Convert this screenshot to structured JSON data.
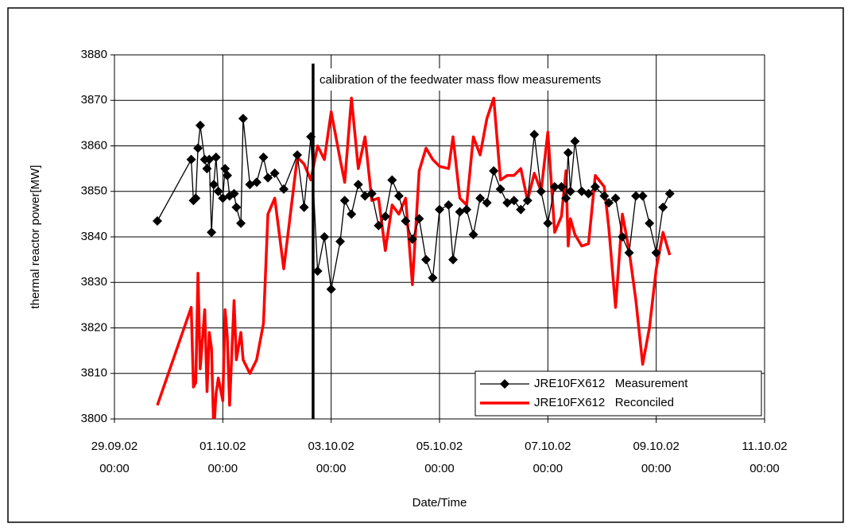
{
  "chart_data": {
    "type": "line",
    "y_label": "thermal reactor power[MW]",
    "x_label": "Date/Time",
    "annotation": "calibration of the feedwater mass flow measurements",
    "annotation_x": "02.10.02 16:00",
    "legend": "bottom-right",
    "grid": true,
    "ylim": [
      3800,
      3880
    ],
    "yticks": [
      3800,
      3810,
      3820,
      3830,
      3840,
      3850,
      3860,
      3870,
      3880
    ],
    "xlim": [
      "29.09.02 00:00",
      "11.10.02 00:00"
    ],
    "xticks": [
      {
        "value": "29.09.02 00:00",
        "label": "29.09.02\n00:00"
      },
      {
        "value": "01.10.02 00:00",
        "label": "01.10.02\n00:00"
      },
      {
        "value": "03.10.02 00:00",
        "label": "03.10.02\n00:00"
      },
      {
        "value": "05.10.02 00:00",
        "label": "05.10.02\n00:00"
      },
      {
        "value": "07.10.02 00:00",
        "label": "07.10.02\n00:00"
      },
      {
        "value": "09.10.02 00:00",
        "label": "09.10.02\n00:00"
      },
      {
        "value": "11.10.02 00:00",
        "label": "11.10.02\n00:00"
      }
    ],
    "x": [
      "29.09.02 19:00",
      "30.09.02 10:00",
      "30.09.02 11:00",
      "30.09.02 12:00",
      "30.09.02 13:00",
      "30.09.02 14:00",
      "30.09.02 16:00",
      "30.09.02 17:00",
      "30.09.02 18:00",
      "30.09.02 19:00",
      "30.09.02 20:00",
      "30.09.02 21:00",
      "30.09.02 22:00",
      "01.10.02 00:00",
      "01.10.02 01:00",
      "01.10.02 02:00",
      "01.10.02 03:00",
      "01.10.02 05:00",
      "01.10.02 06:00",
      "01.10.02 08:00",
      "01.10.02 09:00",
      "01.10.02 12:00",
      "01.10.02 15:00",
      "01.10.02 18:00",
      "01.10.02 20:00",
      "01.10.02 23:00",
      "02.10.02 03:00",
      "02.10.02 09:00",
      "02.10.02 12:00",
      "02.10.02 15:00",
      "02.10.02 18:00",
      "02.10.02 21:00",
      "03.10.02 00:00",
      "03.10.02 04:00",
      "03.10.02 06:00",
      "03.10.02 09:00",
      "03.10.02 12:00",
      "03.10.02 15:00",
      "03.10.02 18:00",
      "03.10.02 21:00",
      "04.10.02 00:00",
      "04.10.02 03:00",
      "04.10.02 06:00",
      "04.10.02 09:00",
      "04.10.02 12:00",
      "04.10.02 15:00",
      "04.10.02 18:00",
      "04.10.02 21:00",
      "05.10.02 00:00",
      "05.10.02 04:00",
      "05.10.02 06:00",
      "05.10.02 09:00",
      "05.10.02 12:00",
      "05.10.02 15:00",
      "05.10.02 18:00",
      "05.10.02 21:00",
      "06.10.02 00:00",
      "06.10.02 03:00",
      "06.10.02 06:00",
      "06.10.02 09:00",
      "06.10.02 12:00",
      "06.10.02 15:00",
      "06.10.02 18:00",
      "06.10.02 21:00",
      "07.10.02 00:00",
      "07.10.02 03:00",
      "07.10.02 06:00",
      "07.10.02 08:00",
      "07.10.02 09:00",
      "07.10.02 10:00",
      "07.10.02 12:00",
      "07.10.02 15:00",
      "07.10.02 18:00",
      "07.10.02 21:00",
      "08.10.02 01:00",
      "08.10.02 03:00",
      "08.10.02 06:00",
      "08.10.02 09:00",
      "08.10.02 12:00",
      "08.10.02 15:00",
      "08.10.02 18:00",
      "08.10.02 21:00",
      "09.10.02 00:00",
      "09.10.02 03:00",
      "09.10.02 06:00"
    ],
    "series": [
      {
        "name": "JRE10FX612   Measurement",
        "color": "#000000",
        "marker": "diamond",
        "values": [
          3843.5,
          3857,
          3848,
          3848.5,
          3859.5,
          3864.5,
          3857,
          3855,
          3857,
          3841,
          3851.5,
          3857.5,
          3850,
          3848.5,
          3855,
          3853.5,
          3849,
          3849.5,
          3846.5,
          3843,
          3866,
          3851.5,
          3852,
          3857.5,
          3853,
          3854,
          3850.5,
          3858,
          3846.5,
          3862,
          3832.5,
          3840,
          3828.5,
          3839,
          3848,
          3845,
          3851.5,
          3849,
          3849.5,
          3842.5,
          3844.5,
          3852.5,
          3849,
          3843.5,
          3839.5,
          3844,
          3835,
          3831,
          3846,
          3847,
          3835,
          3845.5,
          3846,
          3840.5,
          3848.5,
          3847.5,
          3854.5,
          3850.5,
          3847.5,
          3848,
          3846,
          3848,
          3862.5,
          3850,
          3843,
          3851,
          3851,
          3848.5,
          3858.5,
          3850,
          3861,
          3850,
          3849.5,
          3851,
          3849,
          3847.5,
          3848.5,
          3840,
          3836.5,
          3849,
          3849,
          3843,
          3836.5,
          3846.5,
          3849.5
        ]
      },
      {
        "name": "JRE10FX612   Reconciled",
        "color": "#ff0000",
        "marker": "none",
        "values": [
          3803,
          3824.5,
          3807,
          3808,
          3832,
          3811,
          3824,
          3806,
          3819,
          3815.5,
          3797,
          3805.5,
          3809,
          3804,
          3824,
          3818,
          3803,
          3826,
          3813,
          3819,
          3813,
          3810,
          3813,
          3821,
          3845,
          3848.5,
          3833,
          3857.5,
          3856,
          3852.5,
          3860,
          3857,
          3867.5,
          3857,
          3852,
          3870.5,
          3855,
          3862,
          3848,
          3848.5,
          3837,
          3847,
          3845,
          3848.5,
          3829.5,
          3854.5,
          3859.5,
          3857,
          3855.5,
          3855,
          3862,
          3848.5,
          3847,
          3862,
          3858,
          3866,
          3870.5,
          3852.5,
          3853.5,
          3853.5,
          3855,
          3848,
          3854,
          3850,
          3863,
          3841,
          3844.5,
          3854.5,
          3838,
          3844,
          3840.5,
          3838,
          3838.5,
          3853.5,
          3851,
          3842,
          3824.5,
          3845,
          3837,
          3826,
          3812,
          3820,
          3833,
          3841,
          3836
        ]
      }
    ]
  }
}
